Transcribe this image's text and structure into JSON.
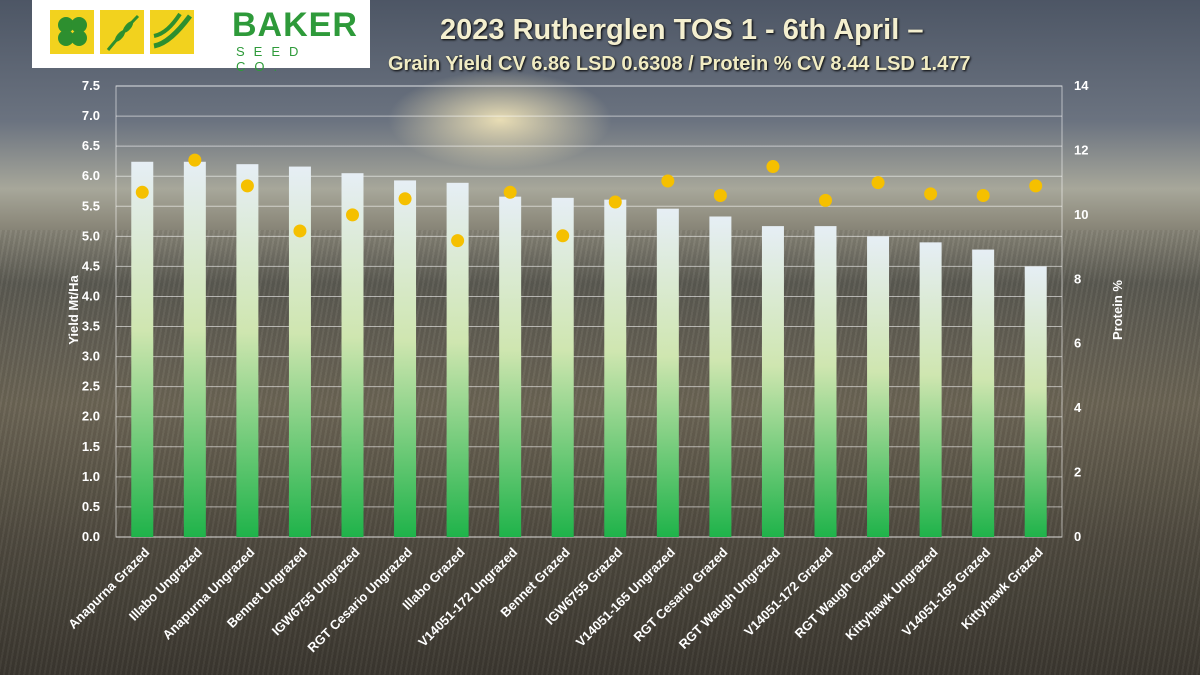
{
  "logo": {
    "name": "BAKER",
    "tagline": "SEED CO."
  },
  "header": {
    "title": "2023 Rutherglen TOS 1 - 6th April –",
    "subtitle": "Grain Yield CV 6.86  LSD 0.6308 / Protein % CV 8.44 LSD 1.477"
  },
  "colors": {
    "bar_top": "#e6eef5",
    "bar_mid": "#cfe6b0",
    "bar_bottom": "#1fb34a",
    "protein_dot": "#f5c000",
    "gridline": "#ffffff"
  },
  "chart_data": {
    "type": "bar",
    "categories": [
      "Anapurna Grazed",
      "Illabo Ungrazed",
      "Anapurna Ungrazed",
      "Bennet Ungrazed",
      "IGW6755 Ungrazed",
      "RGT Cesario Ungrazed",
      "Illabo Grazed",
      "V14051-172 Ungrazed",
      "Bennet Grazed",
      "IGW6755 Grazed",
      "V14051-165 Ungrazed",
      "RGT Cesario Grazed",
      "RGT Waugh Ungrazed",
      "V14051-172 Grazed",
      "RGT Waugh Grazed",
      "Kittyhawk Ungrazed",
      "V14051-165 Grazed",
      "Kittyhawk Grazed"
    ],
    "series": [
      {
        "axis": "left",
        "type": "bar",
        "values": [
          6.24,
          6.24,
          6.2,
          6.16,
          6.05,
          5.93,
          5.89,
          5.66,
          5.64,
          5.61,
          5.46,
          5.33,
          5.17,
          5.17,
          5.0,
          4.9,
          4.78,
          4.5
        ]
      },
      {
        "axis": "right",
        "type": "scatter",
        "values": [
          10.7,
          11.7,
          10.9,
          9.5,
          10.0,
          10.5,
          9.2,
          10.7,
          9.35,
          10.4,
          11.05,
          10.6,
          11.5,
          10.45,
          11.0,
          10.65,
          10.6,
          10.9
        ]
      }
    ],
    "ylabel": "Yield Mt/Ha",
    "ylim": [
      0,
      7.5
    ],
    "yticks": [
      "0.0",
      "0.5",
      "1.0",
      "1.5",
      "2.0",
      "2.5",
      "3.0",
      "3.5",
      "4.0",
      "4.5",
      "5.0",
      "5.5",
      "6.0",
      "6.5",
      "7.0",
      "7.5"
    ],
    "y2label": "Protein %",
    "y2lim": [
      0,
      14
    ],
    "y2ticks": [
      "0",
      "2",
      "4",
      "6",
      "8",
      "10",
      "12",
      "14"
    ],
    "grid": true,
    "legend": "none"
  }
}
